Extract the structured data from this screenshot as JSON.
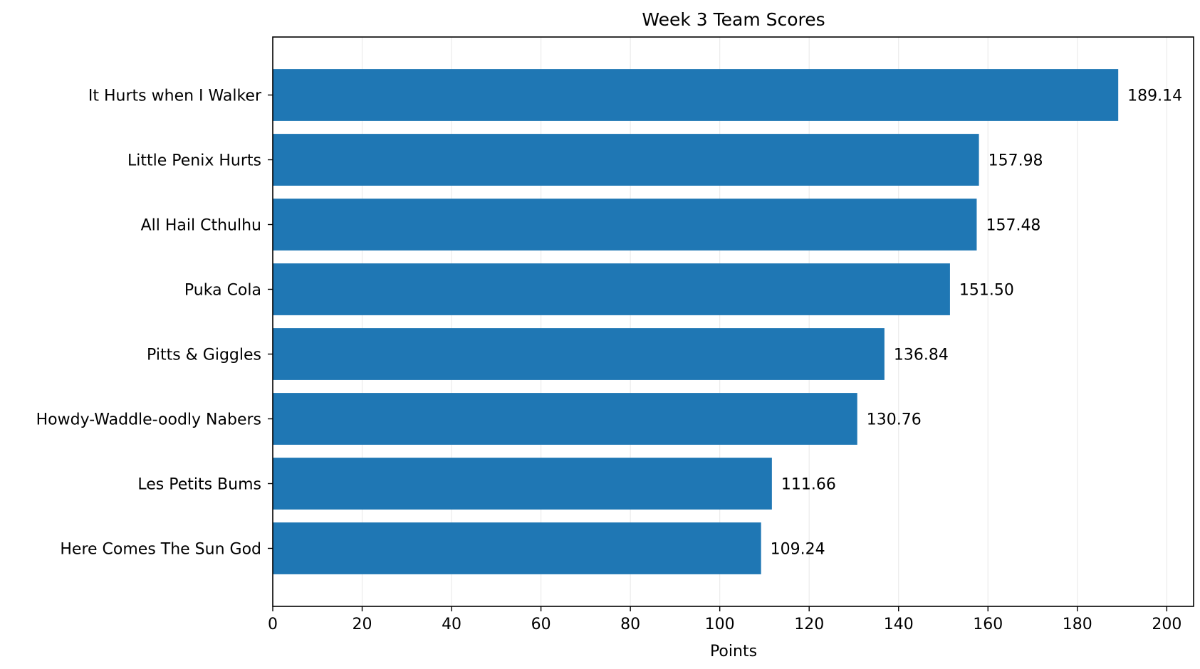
{
  "chart_data": {
    "type": "bar",
    "orientation": "horizontal",
    "title": "Week 3 Team Scores",
    "xlabel": "Points",
    "ylabel": "",
    "categories": [
      "It Hurts when I Walker",
      "Little Penix Hurts",
      "All Hail Cthulhu",
      "Puka Cola",
      "Pitts & Giggles",
      "Howdy-Waddle-oodly Nabers",
      "Les Petits Bums",
      "Here Comes The Sun God"
    ],
    "values": [
      189.14,
      157.98,
      157.48,
      151.5,
      136.84,
      130.76,
      111.66,
      109.24
    ],
    "data_labels": [
      "189.14",
      "157.98",
      "157.48",
      "151.50",
      "136.84",
      "130.76",
      "111.66",
      "109.24"
    ],
    "xlim": [
      0,
      206
    ],
    "xticks": [
      0,
      20,
      40,
      60,
      80,
      100,
      120,
      140,
      160,
      180,
      200
    ],
    "grid": "vertical",
    "bar_color": "#1f77b4",
    "grid_color": "#ebebeb"
  }
}
